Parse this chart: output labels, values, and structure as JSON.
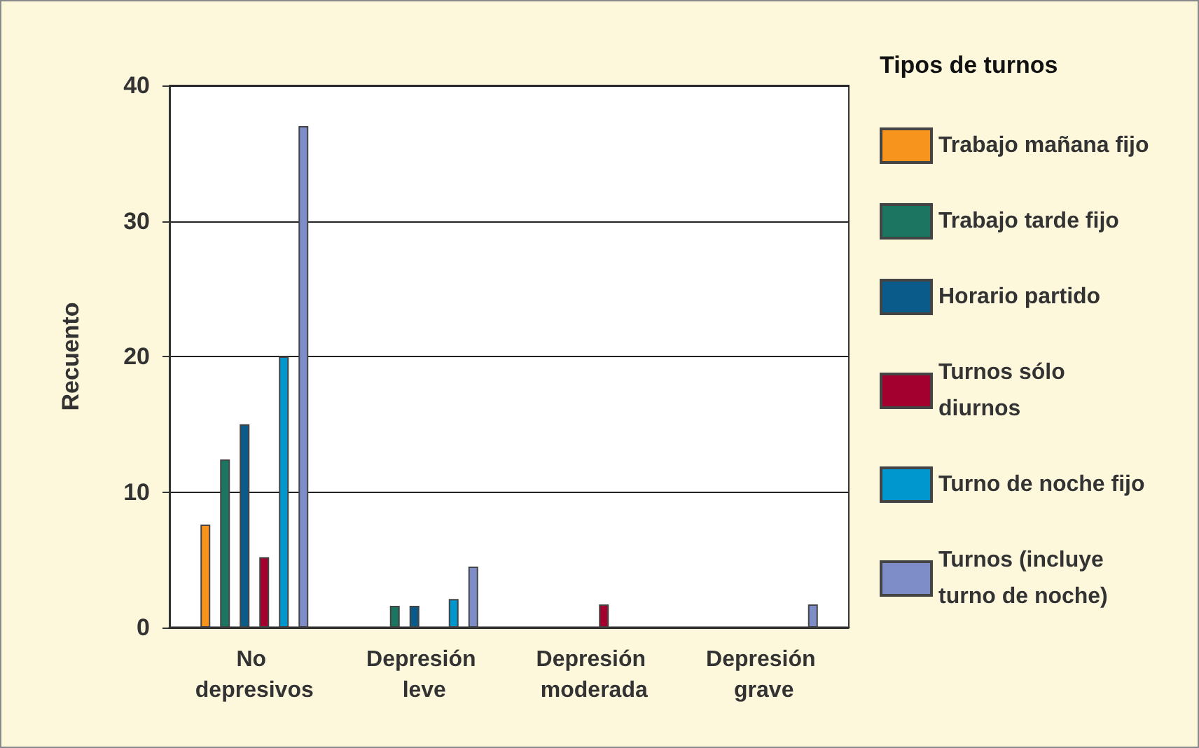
{
  "chart_data": {
    "type": "bar",
    "ylabel": "Recuento",
    "legend_title": "Tipos de turnos",
    "categories": [
      "No depresivos",
      "Depresión leve",
      "Depresión moderada",
      "Depresión grave"
    ],
    "series": [
      {
        "name": "Trabajo mañana fijo",
        "color": "#f7941d",
        "values": [
          7.6,
          null,
          null,
          null
        ]
      },
      {
        "name": "Trabajo tarde fijo",
        "color": "#1b7560",
        "values": [
          12.4,
          1.6,
          null,
          null
        ]
      },
      {
        "name": "Horario partido",
        "color": "#0a5a8a",
        "values": [
          15,
          1.6,
          null,
          null
        ]
      },
      {
        "name": "Turnos sólo diurnos",
        "color": "#a4002f",
        "values": [
          5.2,
          null,
          1.7,
          null
        ]
      },
      {
        "name": "Turno de noche fijo",
        "color": "#0097cf",
        "values": [
          20,
          2.1,
          null,
          null
        ]
      },
      {
        "name": "Turnos (incluye turno de noche)",
        "color": "#7e8cc8",
        "values": [
          37,
          4.5,
          null,
          1.7
        ]
      }
    ],
    "ylim": [
      0,
      40
    ],
    "yticks": [
      0,
      10,
      20,
      30,
      40
    ],
    "grid": "y",
    "legend": "right"
  }
}
